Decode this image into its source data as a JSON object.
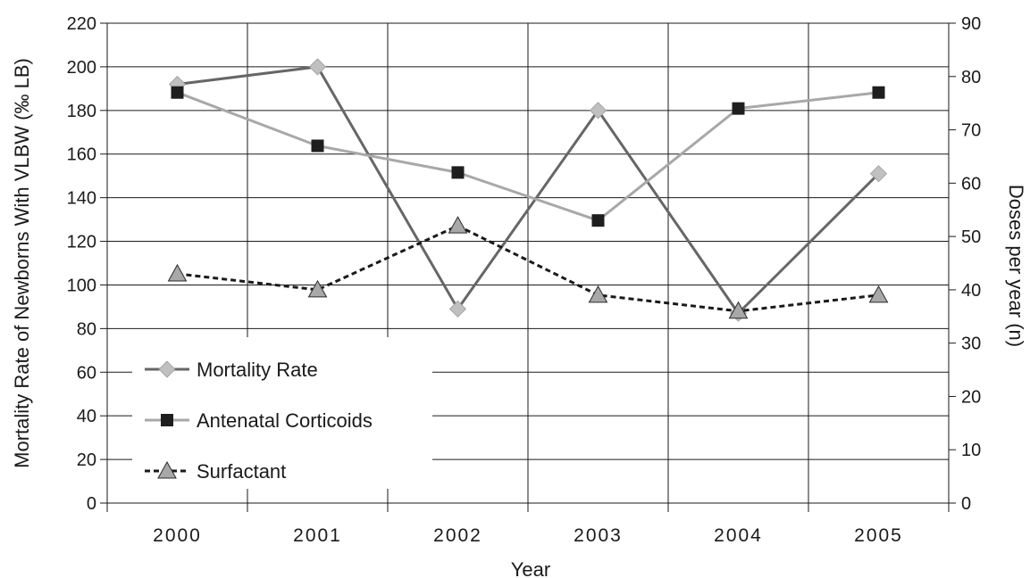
{
  "chart_data": {
    "type": "line",
    "xlabel": "Year",
    "ylabel_left": "Mortality Rate of Newborns With VLBW (‰ LB)",
    "ylabel_right": "Doses per year (n)",
    "categories": [
      "2000",
      "2001",
      "2002",
      "2003",
      "2004",
      "2005"
    ],
    "y_left_lim": [
      0,
      220
    ],
    "y_left_ticks": [
      0,
      20,
      40,
      60,
      80,
      100,
      120,
      140,
      160,
      180,
      200,
      220
    ],
    "y_right_lim": [
      0,
      90
    ],
    "y_right_ticks": [
      0,
      10,
      20,
      30,
      40,
      50,
      60,
      70,
      80,
      90
    ],
    "grid": true,
    "legend_position": "bottom-left",
    "series": [
      {
        "name": "Mortality Rate",
        "axis": "left",
        "marker": "diamond",
        "line_style": "solid",
        "line_color": "#666666",
        "marker_color": "#c0c0c0",
        "values": [
          192,
          200,
          89,
          180,
          87,
          151
        ]
      },
      {
        "name": "Antenatal Corticoids",
        "axis": "right",
        "marker": "square",
        "line_style": "solid",
        "line_color": "#a8a8a8",
        "marker_color": "#1e1e1e",
        "values": [
          77,
          67,
          62,
          53,
          74,
          77
        ]
      },
      {
        "name": "Surfactant",
        "axis": "right",
        "marker": "triangle",
        "line_style": "dashed",
        "line_color": "#1a1a1a",
        "marker_color": "#a8a8a8",
        "values": [
          43,
          40,
          52,
          39,
          36,
          39
        ]
      }
    ]
  }
}
